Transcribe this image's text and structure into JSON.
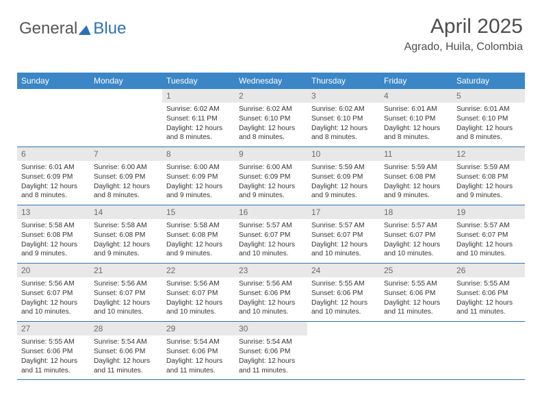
{
  "logo": {
    "text1": "General",
    "text2": "Blue"
  },
  "header": {
    "title": "April 2025",
    "subtitle": "Agrado, Huila, Colombia"
  },
  "colors": {
    "header_bg": "#3b86c7",
    "header_fg": "#ffffff",
    "daynum_bg": "#e8e8e8",
    "daynum_fg": "#6a6a6a",
    "rule": "#2a72b5",
    "text": "#333333"
  },
  "weekdays": [
    "Sunday",
    "Monday",
    "Tuesday",
    "Wednesday",
    "Thursday",
    "Friday",
    "Saturday"
  ],
  "weeks": [
    [
      null,
      null,
      {
        "n": "1",
        "sr": "6:02 AM",
        "ss": "6:11 PM",
        "d": "12 hours and 8 minutes."
      },
      {
        "n": "2",
        "sr": "6:02 AM",
        "ss": "6:10 PM",
        "d": "12 hours and 8 minutes."
      },
      {
        "n": "3",
        "sr": "6:02 AM",
        "ss": "6:10 PM",
        "d": "12 hours and 8 minutes."
      },
      {
        "n": "4",
        "sr": "6:01 AM",
        "ss": "6:10 PM",
        "d": "12 hours and 8 minutes."
      },
      {
        "n": "5",
        "sr": "6:01 AM",
        "ss": "6:10 PM",
        "d": "12 hours and 8 minutes."
      }
    ],
    [
      {
        "n": "6",
        "sr": "6:01 AM",
        "ss": "6:09 PM",
        "d": "12 hours and 8 minutes."
      },
      {
        "n": "7",
        "sr": "6:00 AM",
        "ss": "6:09 PM",
        "d": "12 hours and 8 minutes."
      },
      {
        "n": "8",
        "sr": "6:00 AM",
        "ss": "6:09 PM",
        "d": "12 hours and 9 minutes."
      },
      {
        "n": "9",
        "sr": "6:00 AM",
        "ss": "6:09 PM",
        "d": "12 hours and 9 minutes."
      },
      {
        "n": "10",
        "sr": "5:59 AM",
        "ss": "6:09 PM",
        "d": "12 hours and 9 minutes."
      },
      {
        "n": "11",
        "sr": "5:59 AM",
        "ss": "6:08 PM",
        "d": "12 hours and 9 minutes."
      },
      {
        "n": "12",
        "sr": "5:59 AM",
        "ss": "6:08 PM",
        "d": "12 hours and 9 minutes."
      }
    ],
    [
      {
        "n": "13",
        "sr": "5:58 AM",
        "ss": "6:08 PM",
        "d": "12 hours and 9 minutes."
      },
      {
        "n": "14",
        "sr": "5:58 AM",
        "ss": "6:08 PM",
        "d": "12 hours and 9 minutes."
      },
      {
        "n": "15",
        "sr": "5:58 AM",
        "ss": "6:08 PM",
        "d": "12 hours and 9 minutes."
      },
      {
        "n": "16",
        "sr": "5:57 AM",
        "ss": "6:07 PM",
        "d": "12 hours and 10 minutes."
      },
      {
        "n": "17",
        "sr": "5:57 AM",
        "ss": "6:07 PM",
        "d": "12 hours and 10 minutes."
      },
      {
        "n": "18",
        "sr": "5:57 AM",
        "ss": "6:07 PM",
        "d": "12 hours and 10 minutes."
      },
      {
        "n": "19",
        "sr": "5:57 AM",
        "ss": "6:07 PM",
        "d": "12 hours and 10 minutes."
      }
    ],
    [
      {
        "n": "20",
        "sr": "5:56 AM",
        "ss": "6:07 PM",
        "d": "12 hours and 10 minutes."
      },
      {
        "n": "21",
        "sr": "5:56 AM",
        "ss": "6:07 PM",
        "d": "12 hours and 10 minutes."
      },
      {
        "n": "22",
        "sr": "5:56 AM",
        "ss": "6:07 PM",
        "d": "12 hours and 10 minutes."
      },
      {
        "n": "23",
        "sr": "5:56 AM",
        "ss": "6:06 PM",
        "d": "12 hours and 10 minutes."
      },
      {
        "n": "24",
        "sr": "5:55 AM",
        "ss": "6:06 PM",
        "d": "12 hours and 10 minutes."
      },
      {
        "n": "25",
        "sr": "5:55 AM",
        "ss": "6:06 PM",
        "d": "12 hours and 11 minutes."
      },
      {
        "n": "26",
        "sr": "5:55 AM",
        "ss": "6:06 PM",
        "d": "12 hours and 11 minutes."
      }
    ],
    [
      {
        "n": "27",
        "sr": "5:55 AM",
        "ss": "6:06 PM",
        "d": "12 hours and 11 minutes."
      },
      {
        "n": "28",
        "sr": "5:54 AM",
        "ss": "6:06 PM",
        "d": "12 hours and 11 minutes."
      },
      {
        "n": "29",
        "sr": "5:54 AM",
        "ss": "6:06 PM",
        "d": "12 hours and 11 minutes."
      },
      {
        "n": "30",
        "sr": "5:54 AM",
        "ss": "6:06 PM",
        "d": "12 hours and 11 minutes."
      },
      null,
      null,
      null
    ]
  ],
  "labels": {
    "sunrise": "Sunrise:",
    "sunset": "Sunset:",
    "daylight": "Daylight:"
  }
}
